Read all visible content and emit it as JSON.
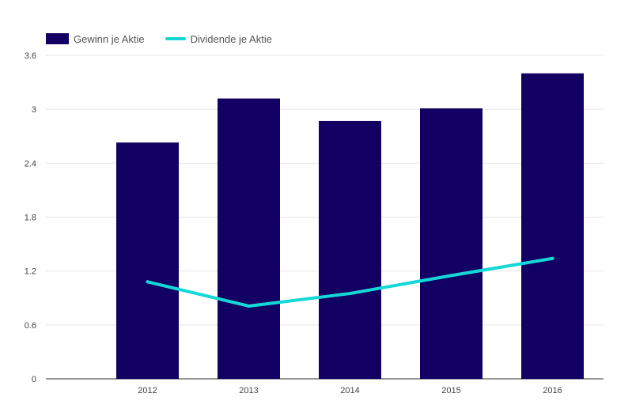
{
  "chart_data": {
    "type": "bar",
    "categories": [
      "2012",
      "2013",
      "2014",
      "2015",
      "2016"
    ],
    "series": [
      {
        "name": "Gewinn je Aktie",
        "type": "bar",
        "color": "#120062",
        "values": [
          2.63,
          3.12,
          2.87,
          3.01,
          3.4
        ]
      },
      {
        "name": "Dividende je Aktie",
        "type": "line",
        "color": "#14d8d8",
        "values": [
          1.08,
          0.81,
          0.95,
          1.15,
          1.34
        ]
      }
    ],
    "y_ticks": [
      "0",
      "0.6",
      "1.2",
      "1.8",
      "2.4",
      "3",
      "3.6"
    ],
    "ylim": [
      0,
      3.6
    ],
    "grid": true,
    "legend_position": "top-left",
    "title": "",
    "xlabel": "",
    "ylabel": ""
  }
}
